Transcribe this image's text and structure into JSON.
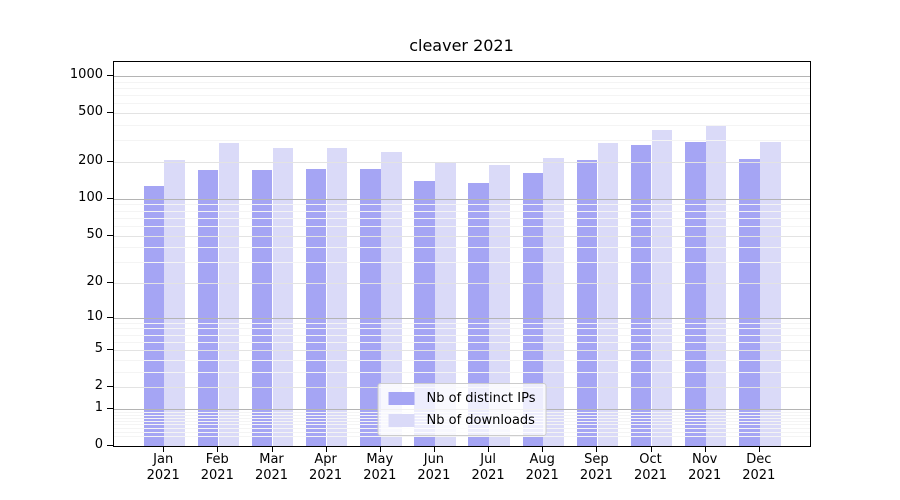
{
  "chart_data": {
    "type": "bar",
    "title": "cleaver 2021",
    "categories": [
      "Jan 2021",
      "Feb 2021",
      "Mar 2021",
      "Apr 2021",
      "May 2021",
      "Jun 2021",
      "Jul 2021",
      "Aug 2021",
      "Sep 2021",
      "Oct 2021",
      "Nov 2021",
      "Dec 2021"
    ],
    "series": [
      {
        "name": "Nb of distinct IPs",
        "color": "#a5a5f4",
        "values": [
          128,
          173,
          172,
          177,
          175,
          141,
          136,
          162,
          207,
          276,
          289,
          212
        ]
      },
      {
        "name": "Nb of downloads",
        "color": "#dadaf8",
        "values": [
          206,
          287,
          262,
          262,
          243,
          196,
          190,
          216,
          286,
          364,
          395,
          291
        ]
      }
    ],
    "yscale": "log(1+x)",
    "yticks": [
      0,
      1,
      2,
      5,
      10,
      20,
      50,
      100,
      200,
      500,
      1000
    ],
    "ylim": [
      0,
      1300
    ],
    "grid": true,
    "legend_position": "lower center",
    "colors": {
      "major_grid": "#b4b4b4",
      "mid_grid": "#e3e3e3",
      "minor_grid": "#f4f4f4",
      "spine": "#000000"
    }
  }
}
